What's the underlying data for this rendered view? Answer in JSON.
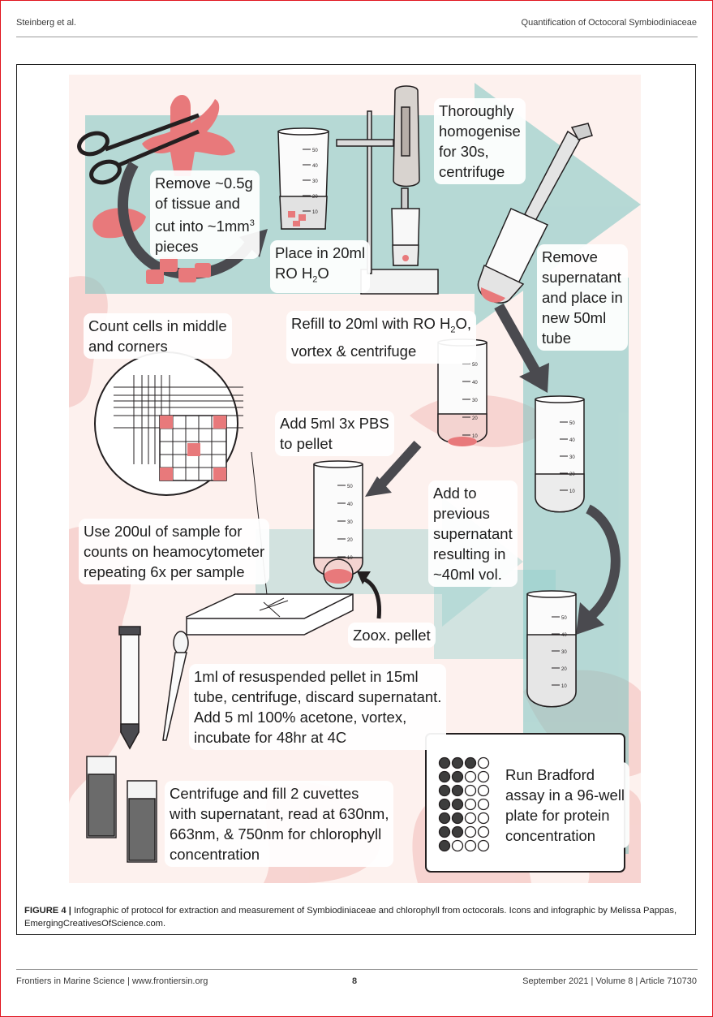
{
  "header": {
    "left": "Steinberg et al.",
    "right": "Quantification of Octocoral Symbiodiniaceae"
  },
  "infographic": {
    "step_remove_tissue": "Remove ~0.5g\nof tissue and\ncut into ~1mm",
    "step_remove_tissue_sup": "3",
    "step_remove_tissue_end": "pieces",
    "step_place": "Place in 20ml\nRO H",
    "step_place_sub": "2",
    "step_place_end": "O",
    "step_homogenise": "Thoroughly\nhomogenise\nfor 30s,\ncentrifuge",
    "step_remove_supernatant": "Remove\nsupernatant\nand place in\nnew 50ml\ntube",
    "step_refill_a": "Refill to 20ml with RO H",
    "step_refill_sub": "2",
    "step_refill_b": "O,",
    "step_refill_c": "vortex & centrifuge",
    "step_count": "Count cells in middle\nand corners",
    "step_add_pbs": "Add 5ml 3x PBS\nto pellet",
    "step_add_previous": "Add to\nprevious\nsupernatant\nresulting in\n~40ml vol.",
    "step_heamocytometer": "Use 200ul of sample for\ncounts on heamocytometer\nrepeating 6x per sample",
    "zoox_pellet": "Zoox. pellet",
    "step_acetone": "1ml of resuspended pellet in 15ml\ntube, centrifuge, discard supernatant.\nAdd 5 ml 100% acetone, vortex,\nincubate for 48hr at 4C",
    "step_cuvettes": "Centrifuge and fill 2 cuvettes\nwith supernatant, read at 630nm,\n663nm, & 750nm for chlorophyll\nconcentration",
    "step_bradford": "Run Bradford\nassay in a 96-well\nplate for protein\nconcentration",
    "tube_ticks": [
      "50",
      "40",
      "30",
      "20",
      "10"
    ],
    "colors": {
      "coral": "#e8797b",
      "teal": "#62b7b3",
      "dark": "#4a4a4f",
      "pink_bg": "#f7d5d2"
    }
  },
  "caption": {
    "label": "FIGURE 4 |",
    "text": " Infographic of protocol for extraction and measurement of Symbiodiniaceae and chlorophyll from octocorals. Icons and infographic by Melissa Pappas, EmergingCreativesOfScience.com."
  },
  "footer": {
    "left": "Frontiers in Marine Science | www.frontiersin.org",
    "page": "8",
    "right": "September 2021 | Volume 8 | Article 710730"
  }
}
